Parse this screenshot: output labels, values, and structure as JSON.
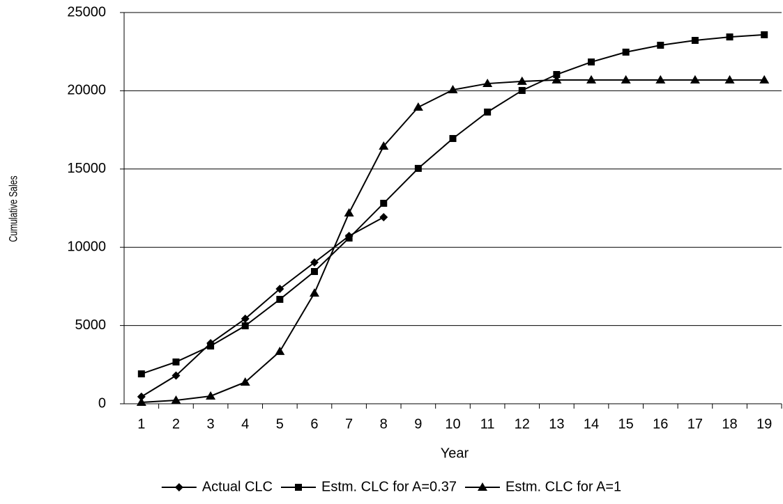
{
  "chart_data": {
    "type": "line",
    "xlabel": "Year",
    "ylabel": "Cumulative Sales",
    "categories": [
      "1",
      "2",
      "3",
      "4",
      "5",
      "6",
      "7",
      "8",
      "9",
      "10",
      "11",
      "12",
      "13",
      "14",
      "15",
      "16",
      "17",
      "18",
      "19"
    ],
    "series": [
      {
        "name": "Actual CLC",
        "color": "#000000",
        "marker": "diamond",
        "values": [
          450,
          1800,
          3870,
          5430,
          7340,
          9030,
          10720,
          11920,
          null,
          null,
          null,
          null,
          null,
          null,
          null,
          null,
          null,
          null,
          null
        ]
      },
      {
        "name": "Estm. CLC for A=0.37",
        "color": "#000000",
        "marker": "square",
        "values": [
          1910,
          2670,
          3690,
          4980,
          6670,
          8450,
          10590,
          12810,
          15040,
          16950,
          18640,
          20020,
          21040,
          21840,
          22470,
          22910,
          23220,
          23440,
          23580
        ]
      },
      {
        "name": "Estm. CLC for A=1",
        "color": "#000000",
        "marker": "triangle",
        "values": [
          90,
          220,
          490,
          1380,
          3340,
          7070,
          12190,
          16460,
          18950,
          20060,
          20460,
          20600,
          20690,
          20690,
          20690,
          20690,
          20690,
          20690,
          20690
        ]
      }
    ],
    "ylim": [
      0,
      25000
    ],
    "yticks": [
      0,
      5000,
      10000,
      15000,
      20000,
      25000
    ],
    "grid": true,
    "legend": "bottom"
  }
}
